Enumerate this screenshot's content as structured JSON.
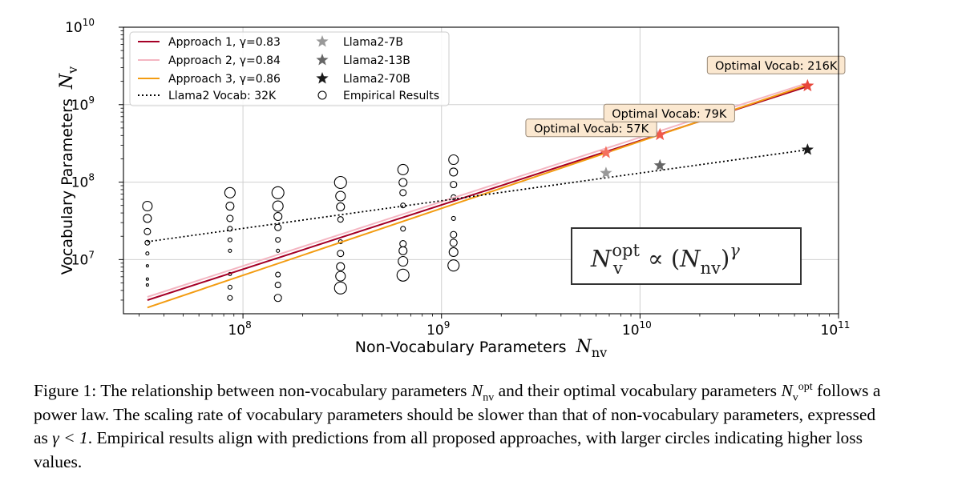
{
  "chart_data": {
    "type": "scatter",
    "x_scale": "log",
    "y_scale": "log",
    "xlim": [
      25000000.0,
      100000000000.0
    ],
    "ylim": [
      2000000.0,
      10000000000.0
    ],
    "grid": true,
    "legend_position": "top-left",
    "xlabel": "Non-Vocabulary Parameters",
    "xlabel_symbol": "N",
    "xlabel_symbol_sub": "nv",
    "ylabel": "Vocabulary Parameters",
    "ylabel_symbol": "N",
    "ylabel_symbol_sub": "v",
    "x_ticks": [
      {
        "value": 100000000.0,
        "base": "10",
        "exp": "8"
      },
      {
        "value": 1000000000.0,
        "base": "10",
        "exp": "9"
      },
      {
        "value": 10000000000.0,
        "base": "10",
        "exp": "10"
      },
      {
        "value": 100000000000.0,
        "base": "10",
        "exp": "11"
      }
    ],
    "y_ticks": [
      {
        "value": 10000000.0,
        "base": "10",
        "exp": "7"
      },
      {
        "value": 100000000.0,
        "base": "10",
        "exp": "8"
      },
      {
        "value": 1000000000.0,
        "base": "10",
        "exp": "9"
      },
      {
        "value": 10000000000.0,
        "base": "10",
        "exp": "10"
      }
    ],
    "lines": [
      {
        "name": "Approach 1, γ=0.83",
        "color": "#a50026",
        "style": "solid",
        "points": [
          [
            33000000.0,
            3000000.0
          ],
          [
            69800000000.0,
            1720000000.0
          ]
        ]
      },
      {
        "name": "Approach 2, γ=0.84",
        "color": "#f4b6c2",
        "style": "solid",
        "points": [
          [
            33000000.0,
            3300000.0
          ],
          [
            69800000000.0,
            1900000000.0
          ]
        ]
      },
      {
        "name": "Approach 3, γ=0.86",
        "color": "#f39c12",
        "style": "solid",
        "points": [
          [
            33000000.0,
            2400000.0
          ],
          [
            69800000000.0,
            1800000000.0
          ]
        ]
      },
      {
        "name": "Llama2 Vocab: 32K",
        "color": "#000000",
        "style": "dotted",
        "points": [
          [
            33000000.0,
            17000000.0
          ],
          [
            69800000000.0,
            262000000.0
          ]
        ]
      }
    ],
    "stars": [
      {
        "name": "Llama2-7B",
        "x": 6740000000.0,
        "y": 131000000.0,
        "color": "#999999"
      },
      {
        "name": "Llama2-13B",
        "x": 12600000000.0,
        "y": 164000000.0,
        "color": "#666666"
      },
      {
        "name": "Llama2-70B",
        "x": 69800000000.0,
        "y": 262000000.0,
        "color": "#1a1a1a"
      }
    ],
    "optimal_stars": [
      {
        "x": 6740000000.0,
        "y": 240000000.0,
        "color": "#f4715e"
      },
      {
        "x": 12600000000.0,
        "y": 410000000.0,
        "color": "#f05a4a"
      },
      {
        "x": 69800000000.0,
        "y": 1750000000.0,
        "color": "#e8453a"
      }
    ],
    "annotations": [
      {
        "text": "Optimal Vocab: 57K",
        "x": 6740000000.0,
        "y": 240000000.0,
        "dx": -100,
        "dy": -31
      },
      {
        "text": "Optimal Vocab: 79K",
        "x": 12600000000.0,
        "y": 410000000.0,
        "dx": -70,
        "dy": -27
      },
      {
        "text": "Optimal Vocab: 216K",
        "x": 69800000000.0,
        "y": 1750000000.0,
        "dx": -125,
        "dy": -26
      }
    ],
    "empirical_legend": "Empirical Results",
    "empirical": [
      {
        "x": 33000000.0,
        "points": [
          [
            49000000.0,
            6
          ],
          [
            34000000.0,
            5
          ],
          [
            23000000.0,
            4
          ],
          [
            16500000.0,
            3
          ],
          [
            12000000.0,
            2
          ],
          [
            8300000.0,
            1.5
          ],
          [
            5600000.0,
            1.5
          ],
          [
            4700000.0,
            1.5
          ]
        ]
      },
      {
        "x": 86000000.0,
        "points": [
          [
            73000000.0,
            6.5
          ],
          [
            49000000.0,
            5
          ],
          [
            34000000.0,
            4
          ],
          [
            25000000.0,
            3
          ],
          [
            18000000.0,
            2.5
          ],
          [
            13000000.0,
            2
          ],
          [
            6500000.0,
            2
          ],
          [
            4400000.0,
            2.5
          ],
          [
            3200000.0,
            3
          ]
        ]
      },
      {
        "x": 150000000.0,
        "points": [
          [
            73000000.0,
            7.5
          ],
          [
            49000000.0,
            6.5
          ],
          [
            36000000.0,
            5
          ],
          [
            26000000.0,
            4
          ],
          [
            18000000.0,
            3
          ],
          [
            13000000.0,
            2
          ],
          [
            6400000.0,
            3
          ],
          [
            4700000.0,
            3.5
          ],
          [
            3200000.0,
            4.5
          ]
        ]
      },
      {
        "x": 310000000.0,
        "points": [
          [
            99000000.0,
            7.5
          ],
          [
            66000000.0,
            6
          ],
          [
            48000000.0,
            5
          ],
          [
            33000000.0,
            3.5
          ],
          [
            17000000.0,
            2.5
          ],
          [
            12000000.0,
            4
          ],
          [
            8100000.0,
            5
          ],
          [
            6100000.0,
            6
          ],
          [
            4300000.0,
            7.5
          ]
        ]
      },
      {
        "x": 640000000.0,
        "points": [
          [
            145000000.0,
            6.5
          ],
          [
            99000000.0,
            5
          ],
          [
            73000000.0,
            4
          ],
          [
            50000000.0,
            3
          ],
          [
            25000000.0,
            3
          ],
          [
            16000000.0,
            4
          ],
          [
            13000000.0,
            5
          ],
          [
            9500000.0,
            6
          ],
          [
            6300000.0,
            7.5
          ]
        ]
      },
      {
        "x": 1150000000.0,
        "points": [
          [
            195000000.0,
            6
          ],
          [
            135000000.0,
            5
          ],
          [
            93000000.0,
            4
          ],
          [
            64000000.0,
            3
          ],
          [
            34000000.0,
            2.5
          ],
          [
            21000000.0,
            4
          ],
          [
            16500000.0,
            4.5
          ],
          [
            12500000.0,
            5.5
          ],
          [
            8400000.0,
            7
          ]
        ]
      }
    ],
    "formula": {
      "lhs": "N",
      "lhs_sub": "v",
      "lhs_sup": "opt",
      "op": "∝",
      "rhs_open": "(",
      "rhs": "N",
      "rhs_sub": "nv",
      "rhs_close": ")",
      "rhs_sup": "γ"
    }
  },
  "caption": {
    "prefix": "Figure 1: The relationship between non-vocabulary parameters ",
    "sym1": "N",
    "sym1_sub": "nv",
    "mid1": " and their optimal vocabulary parameters ",
    "sym2": "N",
    "sym2_sub": "v",
    "sym2_sup": "opt",
    "mid2": " follows a power law. The scaling rate of vocabulary parameters should be slower than that of non-vocabulary parameters, expressed as ",
    "gamma": "γ < 1",
    "suffix": ". Empirical results align with predictions from all proposed approaches, with larger circles indicating higher loss values."
  }
}
